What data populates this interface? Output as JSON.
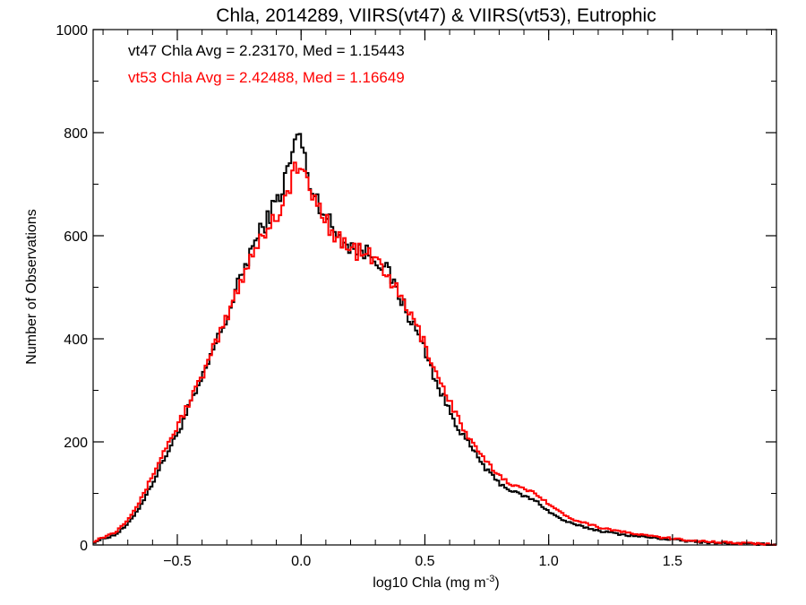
{
  "chart_data": {
    "type": "line",
    "title": "Chla, 2014289, VIIRS(vt47) & VIIRS(vt53), Eutrophic",
    "xlabel": "log10 Chla (mg m",
    "xlabel_sup": "-3",
    "xlabel_close": ")",
    "ylabel": "Number of Observations",
    "xlim": [
      -0.84,
      1.92
    ],
    "ylim": [
      0,
      1000
    ],
    "xticks": [
      -0.5,
      0.0,
      0.5,
      1.0,
      1.5
    ],
    "xtick_labels": [
      "−0.5",
      "0.0",
      "0.5",
      "1.0",
      "1.5"
    ],
    "yticks": [
      0,
      200,
      400,
      600,
      800,
      1000
    ],
    "ytick_labels": [
      "0",
      "200",
      "400",
      "600",
      "800",
      "1000"
    ],
    "annotations": [
      {
        "text": "vt47 Chla Avg = 2.23170, Med = 1.15443",
        "color": "#000000"
      },
      {
        "text": "vt53 Chla Avg = 2.42488, Med = 1.16649",
        "color": "#ff0000"
      }
    ],
    "series": [
      {
        "color": "#000000",
        "points": [
          [
            -0.84,
            5
          ],
          [
            -0.8,
            12
          ],
          [
            -0.75,
            20
          ],
          [
            -0.7,
            40
          ],
          [
            -0.65,
            75
          ],
          [
            -0.6,
            120
          ],
          [
            -0.55,
            170
          ],
          [
            -0.5,
            215
          ],
          [
            -0.45,
            270
          ],
          [
            -0.4,
            320
          ],
          [
            -0.35,
            385
          ],
          [
            -0.3,
            440
          ],
          [
            -0.25,
            510
          ],
          [
            -0.2,
            575
          ],
          [
            -0.15,
            620
          ],
          [
            -0.1,
            665
          ],
          [
            -0.07,
            700
          ],
          [
            -0.05,
            735
          ],
          [
            -0.03,
            770
          ],
          [
            -0.01,
            800
          ],
          [
            0.0,
            790
          ],
          [
            0.02,
            730
          ],
          [
            0.05,
            680
          ],
          [
            0.08,
            660
          ],
          [
            0.1,
            640
          ],
          [
            0.12,
            620
          ],
          [
            0.15,
            600
          ],
          [
            0.2,
            580
          ],
          [
            0.25,
            570
          ],
          [
            0.3,
            560
          ],
          [
            0.35,
            530
          ],
          [
            0.4,
            480
          ],
          [
            0.45,
            430
          ],
          [
            0.5,
            380
          ],
          [
            0.55,
            310
          ],
          [
            0.6,
            260
          ],
          [
            0.65,
            215
          ],
          [
            0.7,
            180
          ],
          [
            0.75,
            145
          ],
          [
            0.8,
            120
          ],
          [
            0.85,
            105
          ],
          [
            0.9,
            95
          ],
          [
            0.95,
            85
          ],
          [
            1.0,
            65
          ],
          [
            1.05,
            50
          ],
          [
            1.1,
            40
          ],
          [
            1.2,
            28
          ],
          [
            1.3,
            20
          ],
          [
            1.4,
            15
          ],
          [
            1.5,
            10
          ],
          [
            1.6,
            6
          ],
          [
            1.7,
            4
          ],
          [
            1.8,
            2
          ],
          [
            1.92,
            1
          ]
        ]
      },
      {
        "color": "#ff0000",
        "points": [
          [
            -0.84,
            7
          ],
          [
            -0.8,
            15
          ],
          [
            -0.75,
            25
          ],
          [
            -0.7,
            50
          ],
          [
            -0.65,
            85
          ],
          [
            -0.6,
            135
          ],
          [
            -0.55,
            185
          ],
          [
            -0.5,
            230
          ],
          [
            -0.45,
            280
          ],
          [
            -0.4,
            325
          ],
          [
            -0.35,
            385
          ],
          [
            -0.3,
            440
          ],
          [
            -0.25,
            505
          ],
          [
            -0.2,
            565
          ],
          [
            -0.15,
            605
          ],
          [
            -0.1,
            640
          ],
          [
            -0.07,
            665
          ],
          [
            -0.05,
            690
          ],
          [
            -0.03,
            720
          ],
          [
            -0.01,
            745
          ],
          [
            0.0,
            730
          ],
          [
            0.02,
            700
          ],
          [
            0.05,
            675
          ],
          [
            0.08,
            650
          ],
          [
            0.1,
            635
          ],
          [
            0.12,
            615
          ],
          [
            0.15,
            595
          ],
          [
            0.2,
            575
          ],
          [
            0.25,
            565
          ],
          [
            0.3,
            555
          ],
          [
            0.35,
            525
          ],
          [
            0.4,
            480
          ],
          [
            0.45,
            440
          ],
          [
            0.5,
            390
          ],
          [
            0.55,
            330
          ],
          [
            0.6,
            280
          ],
          [
            0.65,
            230
          ],
          [
            0.7,
            190
          ],
          [
            0.75,
            160
          ],
          [
            0.8,
            135
          ],
          [
            0.85,
            118
          ],
          [
            0.9,
            108
          ],
          [
            0.95,
            100
          ],
          [
            1.0,
            80
          ],
          [
            1.05,
            62
          ],
          [
            1.1,
            50
          ],
          [
            1.2,
            35
          ],
          [
            1.3,
            25
          ],
          [
            1.4,
            18
          ],
          [
            1.5,
            12
          ],
          [
            1.6,
            8
          ],
          [
            1.7,
            5
          ],
          [
            1.8,
            3
          ],
          [
            1.92,
            1
          ]
        ]
      }
    ],
    "grid": false,
    "legend": "none"
  }
}
